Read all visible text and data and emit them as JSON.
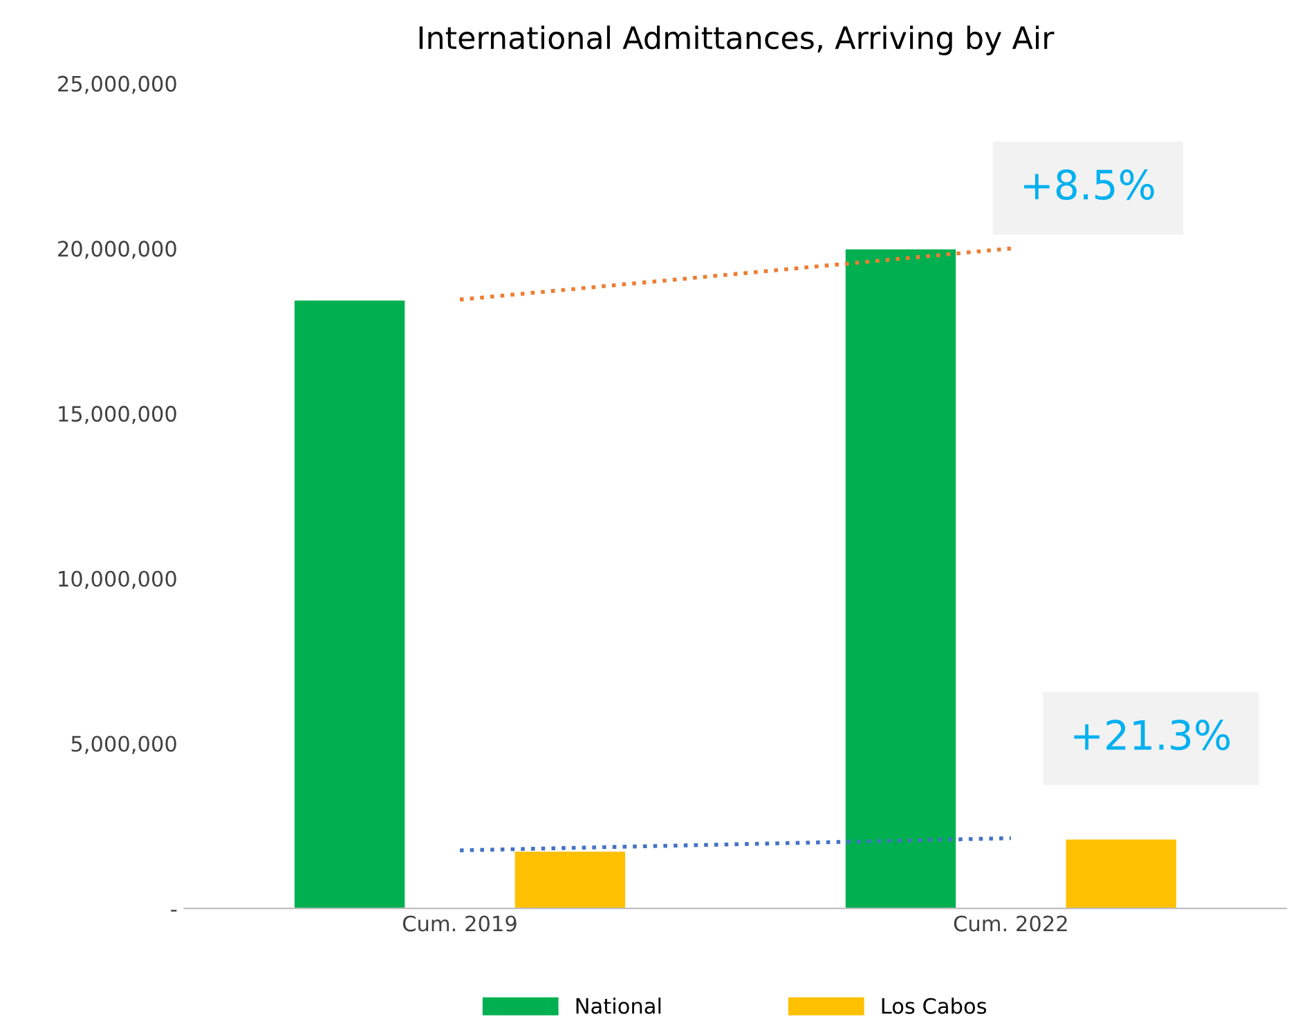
{
  "chart_data": {
    "type": "bar",
    "title": "International Admittances, Arriving by Air",
    "categories": [
      "Cum. 2019",
      "Cum. 2022"
    ],
    "series": [
      {
        "name": "National",
        "color": "#00b050",
        "values": [
          18420000,
          19970000
        ]
      },
      {
        "name": "Los Cabos",
        "color": "#ffc000",
        "values": [
          1720000,
          2090000
        ]
      },
      {
        "type": "line",
        "color": "#ed7d31",
        "line_style": "dotted",
        "x": [
          "Cum. 2019",
          "Cum. 2022"
        ],
        "values": [
          18450000,
          20000000
        ]
      },
      {
        "type": "line",
        "color": "#4472c4",
        "line_style": "dotted",
        "x": [
          "Cum. 2019",
          "Cum. 2022"
        ],
        "values": [
          1760000,
          2130000
        ]
      }
    ],
    "ylim": [
      0,
      25000000
    ],
    "yticks": [
      {
        "value": 0,
        "label": "-"
      },
      {
        "value": 5000000,
        "label": "5,000,000"
      },
      {
        "value": 10000000,
        "label": "10,000,000"
      },
      {
        "value": 15000000,
        "label": "15,000,000"
      },
      {
        "value": 20000000,
        "label": "20,000,000"
      },
      {
        "value": 25000000,
        "label": "25,000,000"
      }
    ],
    "grid": false,
    "legend": "bottom",
    "annotations": [
      "+8.5%",
      "+21.3%"
    ]
  }
}
